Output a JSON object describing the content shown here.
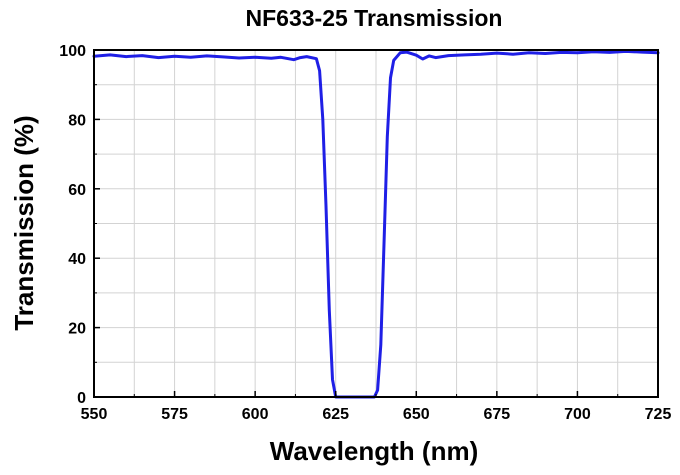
{
  "chart_data": {
    "type": "line",
    "title": "NF633-25 Transmission",
    "xlabel": "Wavelength (nm)",
    "ylabel": "Transmission (%)",
    "xlim": [
      550,
      725
    ],
    "ylim": [
      0,
      100
    ],
    "x_ticks": [
      550,
      575,
      600,
      625,
      650,
      675,
      700,
      725
    ],
    "y_ticks": [
      0,
      20,
      40,
      60,
      80,
      100
    ],
    "grid": true,
    "legend": "none",
    "line_color": "#1f1fe6",
    "series": [
      {
        "x": [
          550,
          555,
          560,
          565,
          570,
          575,
          580,
          585,
          590,
          595,
          600,
          605,
          608,
          612,
          614,
          616,
          619,
          620,
          621,
          622,
          623,
          624,
          625,
          626,
          630,
          634,
          637,
          638,
          639,
          640,
          641,
          642,
          643,
          645,
          647,
          650,
          652,
          654,
          656,
          660,
          665,
          670,
          675,
          680,
          685,
          690,
          695,
          700,
          705,
          710,
          715,
          720,
          725
        ],
        "y": [
          98.2,
          98.6,
          98.1,
          98.4,
          97.8,
          98.2,
          97.9,
          98.3,
          98.0,
          97.7,
          97.9,
          97.6,
          97.9,
          97.2,
          97.8,
          98.1,
          97.5,
          94,
          80,
          55,
          25,
          5,
          0,
          0,
          0,
          0,
          0,
          2,
          15,
          45,
          75,
          92,
          97,
          99.2,
          99.4,
          98.5,
          97.4,
          98.3,
          97.8,
          98.4,
          98.6,
          98.8,
          99.1,
          98.8,
          99.2,
          99.0,
          99.3,
          99.2,
          99.5,
          99.3,
          99.6,
          99.4,
          99.2
        ]
      }
    ]
  }
}
